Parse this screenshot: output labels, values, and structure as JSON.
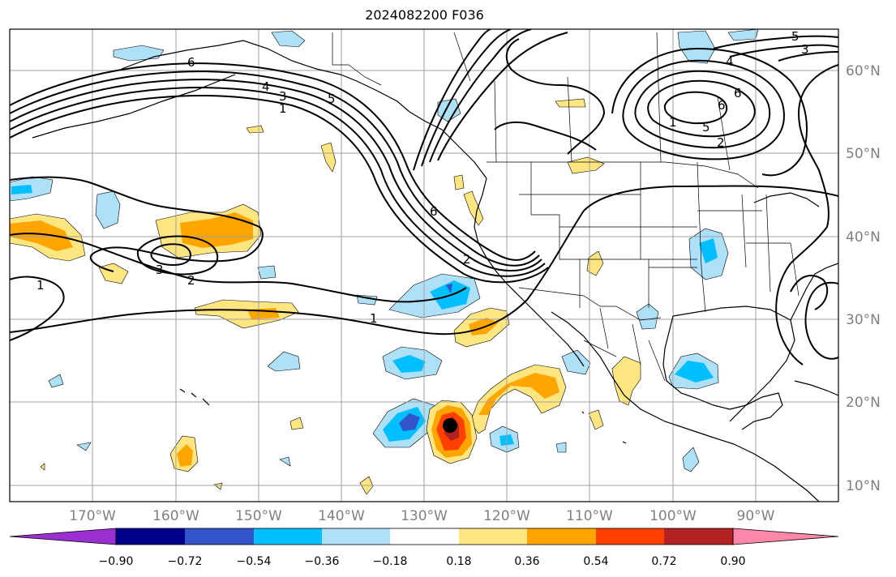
{
  "title": "2024082200 F036",
  "map": {
    "lon_range": [
      -180,
      -80
    ],
    "lat_range": [
      8,
      65
    ],
    "lon_ticks": [
      "170°W",
      "160°W",
      "150°W",
      "140°W",
      "130°W",
      "120°W",
      "110°W",
      "100°W",
      "90°W"
    ],
    "lat_ticks": [
      "10°N",
      "20°N",
      "30°N",
      "40°N",
      "50°N",
      "60°N"
    ],
    "grid": true,
    "tick_color": "#808080"
  },
  "colorbar": {
    "orientation": "horizontal",
    "extend": "both",
    "colors": [
      "#9b30d0",
      "#00008b",
      "#3355cc",
      "#00bfff",
      "#aee0f8",
      "#ffffff",
      "#ffe680",
      "#ffa500",
      "#ff4000",
      "#b22222",
      "#ff88aa"
    ],
    "tick_labels": [
      "−0.90",
      "−0.72",
      "−0.54",
      "−0.36",
      "−0.18",
      "0.18",
      "0.36",
      "0.54",
      "0.72",
      "0.90"
    ]
  },
  "contour_labels": [
    "6",
    "5",
    "4",
    "3",
    "1",
    "6",
    "2",
    "1",
    "3",
    "1",
    "2",
    "6",
    "5",
    "4",
    "3",
    "2",
    "1",
    "5",
    "6"
  ],
  "marker": {
    "type": "storm-center",
    "color": "#000000"
  }
}
